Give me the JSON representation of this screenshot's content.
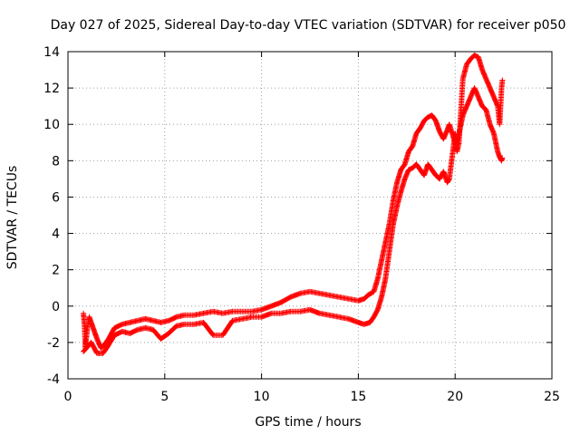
{
  "chart_data": {
    "type": "scatter",
    "title": "Day 027 of 2025, Sidereal Day-to-day VTEC variation (SDTVAR) for receiver p050",
    "xlabel": "GPS time / hours",
    "ylabel": "SDTVAR / TECUs",
    "xlim": [
      0,
      25
    ],
    "ylim": [
      -4,
      14
    ],
    "xticks": [
      0,
      5,
      10,
      15,
      20,
      25
    ],
    "yticks": [
      -4,
      -2,
      0,
      2,
      4,
      6,
      8,
      10,
      12,
      14
    ],
    "grid": true,
    "marker": "+",
    "colors": {
      "series": "#ff0000",
      "grid": "#a0a0a0",
      "axis": "#000000"
    },
    "series": [
      {
        "name": "SDTVAR",
        "trace": [
          [
            0.8,
            -0.4
          ],
          [
            0.85,
            -1.0
          ],
          [
            0.9,
            -2.3
          ],
          [
            1.0,
            -1.2
          ],
          [
            1.1,
            -0.6
          ],
          [
            1.3,
            -1.2
          ],
          [
            1.5,
            -1.8
          ],
          [
            1.7,
            -2.3
          ],
          [
            1.9,
            -2.1
          ],
          [
            2.1,
            -1.8
          ],
          [
            2.4,
            -1.2
          ],
          [
            2.8,
            -1.0
          ],
          [
            3.2,
            -0.9
          ],
          [
            3.6,
            -0.8
          ],
          [
            4.0,
            -0.7
          ],
          [
            4.4,
            -0.8
          ],
          [
            4.8,
            -0.9
          ],
          [
            5.2,
            -0.8
          ],
          [
            5.6,
            -0.6
          ],
          [
            6.0,
            -0.5
          ],
          [
            6.5,
            -0.5
          ],
          [
            7.0,
            -0.4
          ],
          [
            7.5,
            -0.3
          ],
          [
            8.0,
            -0.4
          ],
          [
            8.5,
            -0.3
          ],
          [
            9.0,
            -0.3
          ],
          [
            9.5,
            -0.3
          ],
          [
            10.0,
            -0.2
          ],
          [
            10.5,
            0.0
          ],
          [
            11.0,
            0.2
          ],
          [
            11.5,
            0.5
          ],
          [
            12.0,
            0.7
          ],
          [
            12.5,
            0.8
          ],
          [
            13.0,
            0.7
          ],
          [
            13.5,
            0.6
          ],
          [
            14.0,
            0.5
          ],
          [
            14.5,
            0.4
          ],
          [
            15.0,
            0.3
          ],
          [
            15.3,
            0.4
          ],
          [
            15.5,
            0.6
          ],
          [
            15.8,
            0.8
          ],
          [
            16.0,
            1.5
          ],
          [
            16.2,
            2.5
          ],
          [
            16.4,
            3.5
          ],
          [
            16.6,
            4.5
          ],
          [
            16.8,
            5.8
          ],
          [
            17.0,
            6.8
          ],
          [
            17.2,
            7.5
          ],
          [
            17.4,
            7.8
          ],
          [
            17.6,
            8.5
          ],
          [
            17.8,
            8.8
          ],
          [
            18.0,
            9.5
          ],
          [
            18.2,
            9.8
          ],
          [
            18.4,
            10.2
          ],
          [
            18.6,
            10.4
          ],
          [
            18.8,
            10.5
          ],
          [
            19.0,
            10.2
          ],
          [
            19.2,
            9.6
          ],
          [
            19.4,
            9.2
          ],
          [
            19.6,
            9.7
          ],
          [
            19.7,
            10.0
          ],
          [
            20.0,
            9.0
          ],
          [
            20.1,
            8.5
          ],
          [
            20.2,
            9.0
          ],
          [
            20.4,
            12.5
          ],
          [
            20.6,
            13.3
          ],
          [
            20.8,
            13.6
          ],
          [
            21.0,
            13.8
          ],
          [
            21.2,
            13.7
          ],
          [
            21.4,
            13.0
          ],
          [
            21.6,
            12.5
          ],
          [
            21.8,
            12.0
          ],
          [
            22.0,
            11.5
          ],
          [
            22.2,
            11.0
          ],
          [
            22.3,
            10.0
          ],
          [
            22.4,
            12.0
          ],
          [
            22.45,
            12.5
          ]
        ],
        "lower_trace": [
          [
            0.8,
            -2.5
          ],
          [
            1.2,
            -2.0
          ],
          [
            1.5,
            -2.6
          ],
          [
            1.8,
            -2.6
          ],
          [
            2.0,
            -2.3
          ],
          [
            2.4,
            -1.6
          ],
          [
            2.8,
            -1.4
          ],
          [
            3.2,
            -1.5
          ],
          [
            3.6,
            -1.3
          ],
          [
            4.0,
            -1.2
          ],
          [
            4.4,
            -1.3
          ],
          [
            4.8,
            -1.8
          ],
          [
            5.2,
            -1.5
          ],
          [
            5.6,
            -1.1
          ],
          [
            6.0,
            -1.0
          ],
          [
            6.5,
            -1.0
          ],
          [
            7.0,
            -0.9
          ],
          [
            7.5,
            -1.6
          ],
          [
            8.0,
            -1.6
          ],
          [
            8.5,
            -0.8
          ],
          [
            9.0,
            -0.7
          ],
          [
            9.5,
            -0.6
          ],
          [
            10.0,
            -0.6
          ],
          [
            10.5,
            -0.4
          ],
          [
            11.0,
            -0.4
          ],
          [
            11.5,
            -0.3
          ],
          [
            12.0,
            -0.3
          ],
          [
            12.5,
            -0.2
          ],
          [
            13.0,
            -0.4
          ],
          [
            13.5,
            -0.5
          ],
          [
            14.0,
            -0.6
          ],
          [
            14.5,
            -0.7
          ],
          [
            15.0,
            -0.9
          ],
          [
            15.3,
            -1.0
          ],
          [
            15.6,
            -0.9
          ],
          [
            15.8,
            -0.6
          ],
          [
            16.0,
            -0.2
          ],
          [
            16.2,
            0.5
          ],
          [
            16.4,
            1.5
          ],
          [
            16.6,
            3.0
          ],
          [
            16.8,
            4.5
          ],
          [
            17.0,
            5.5
          ],
          [
            17.2,
            6.3
          ],
          [
            17.4,
            7.0
          ],
          [
            17.6,
            7.5
          ],
          [
            17.8,
            7.6
          ],
          [
            18.0,
            7.8
          ],
          [
            18.2,
            7.5
          ],
          [
            18.4,
            7.2
          ],
          [
            18.6,
            7.8
          ],
          [
            18.8,
            7.5
          ],
          [
            19.0,
            7.2
          ],
          [
            19.2,
            7.0
          ],
          [
            19.4,
            7.4
          ],
          [
            19.6,
            6.8
          ],
          [
            19.7,
            7.0
          ],
          [
            20.0,
            9.5
          ],
          [
            20.1,
            9.0
          ],
          [
            20.2,
            9.5
          ],
          [
            20.4,
            10.5
          ],
          [
            20.6,
            11.0
          ],
          [
            20.8,
            11.5
          ],
          [
            21.0,
            12.0
          ],
          [
            21.2,
            11.5
          ],
          [
            21.4,
            11.0
          ],
          [
            21.6,
            10.8
          ],
          [
            21.8,
            10.0
          ],
          [
            22.0,
            9.5
          ],
          [
            22.1,
            9.0
          ],
          [
            22.2,
            8.5
          ],
          [
            22.3,
            8.2
          ],
          [
            22.4,
            8.0
          ],
          [
            22.45,
            8.2
          ]
        ]
      }
    ]
  }
}
